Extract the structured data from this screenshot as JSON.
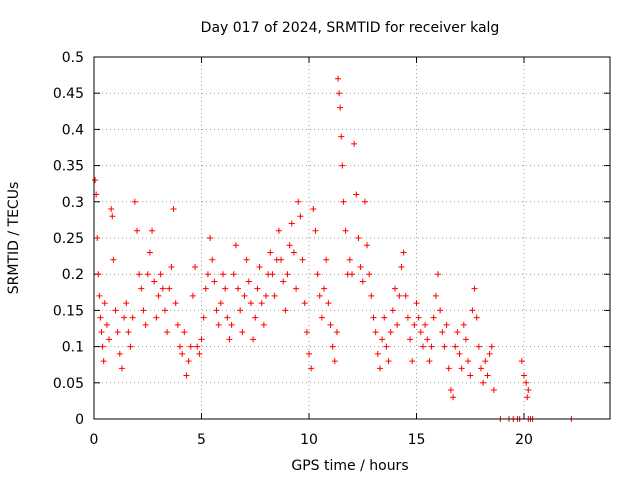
{
  "chart_data": {
    "type": "scatter",
    "title": "Day 017 of 2024, SRMTID for receiver kalg",
    "xlabel": "GPS time / hours",
    "ylabel": "SRMTID / TECUs",
    "xlim": [
      0,
      24
    ],
    "ylim": [
      0,
      0.5
    ],
    "grid": true,
    "marker": "+",
    "color": "#ff0000",
    "x_ticks": [
      "0",
      "5",
      "10",
      "15",
      "20"
    ],
    "y_ticks": [
      "0",
      "0.05",
      "0.1",
      "0.15",
      "0.2",
      "0.25",
      "0.3",
      "0.35",
      "0.4",
      "0.45",
      "0.5"
    ],
    "series": [
      {
        "points": [
          [
            0.05,
            0.33
          ],
          [
            0.1,
            0.31
          ],
          [
            0.15,
            0.25
          ],
          [
            0.2,
            0.2
          ],
          [
            0.25,
            0.17
          ],
          [
            0.3,
            0.14
          ],
          [
            0.35,
            0.12
          ],
          [
            0.4,
            0.1
          ],
          [
            0.45,
            0.08
          ],
          [
            0.5,
            0.16
          ],
          [
            0.6,
            0.13
          ],
          [
            0.7,
            0.11
          ],
          [
            0.8,
            0.29
          ],
          [
            0.85,
            0.28
          ],
          [
            0.9,
            0.22
          ],
          [
            1.0,
            0.15
          ],
          [
            1.1,
            0.12
          ],
          [
            1.2,
            0.09
          ],
          [
            1.3,
            0.07
          ],
          [
            1.4,
            0.14
          ],
          [
            1.5,
            0.16
          ],
          [
            1.6,
            0.12
          ],
          [
            1.7,
            0.1
          ],
          [
            1.8,
            0.14
          ],
          [
            1.9,
            0.3
          ],
          [
            2.0,
            0.26
          ],
          [
            2.1,
            0.2
          ],
          [
            2.2,
            0.18
          ],
          [
            2.3,
            0.15
          ],
          [
            2.4,
            0.13
          ],
          [
            2.5,
            0.2
          ],
          [
            2.6,
            0.23
          ],
          [
            2.7,
            0.26
          ],
          [
            2.8,
            0.19
          ],
          [
            2.9,
            0.14
          ],
          [
            3.0,
            0.17
          ],
          [
            3.1,
            0.2
          ],
          [
            3.2,
            0.18
          ],
          [
            3.3,
            0.15
          ],
          [
            3.4,
            0.12
          ],
          [
            3.5,
            0.18
          ],
          [
            3.6,
            0.21
          ],
          [
            3.7,
            0.29
          ],
          [
            3.8,
            0.16
          ],
          [
            3.9,
            0.13
          ],
          [
            4.0,
            0.1
          ],
          [
            4.1,
            0.09
          ],
          [
            4.2,
            0.12
          ],
          [
            4.3,
            0.06
          ],
          [
            4.4,
            0.08
          ],
          [
            4.5,
            0.1
          ],
          [
            4.6,
            0.17
          ],
          [
            4.7,
            0.21
          ],
          [
            4.8,
            0.1
          ],
          [
            4.9,
            0.09
          ],
          [
            5.0,
            0.11
          ],
          [
            5.1,
            0.14
          ],
          [
            5.2,
            0.18
          ],
          [
            5.3,
            0.2
          ],
          [
            5.4,
            0.25
          ],
          [
            5.5,
            0.22
          ],
          [
            5.6,
            0.19
          ],
          [
            5.7,
            0.15
          ],
          [
            5.8,
            0.13
          ],
          [
            5.9,
            0.16
          ],
          [
            6.0,
            0.2
          ],
          [
            6.1,
            0.18
          ],
          [
            6.2,
            0.14
          ],
          [
            6.3,
            0.11
          ],
          [
            6.4,
            0.13
          ],
          [
            6.5,
            0.2
          ],
          [
            6.6,
            0.24
          ],
          [
            6.7,
            0.18
          ],
          [
            6.8,
            0.15
          ],
          [
            6.9,
            0.12
          ],
          [
            7.0,
            0.17
          ],
          [
            7.1,
            0.22
          ],
          [
            7.2,
            0.19
          ],
          [
            7.3,
            0.16
          ],
          [
            7.4,
            0.11
          ],
          [
            7.5,
            0.14
          ],
          [
            7.6,
            0.18
          ],
          [
            7.7,
            0.21
          ],
          [
            7.8,
            0.16
          ],
          [
            7.9,
            0.13
          ],
          [
            8.0,
            0.17
          ],
          [
            8.1,
            0.2
          ],
          [
            8.2,
            0.23
          ],
          [
            8.3,
            0.2
          ],
          [
            8.4,
            0.17
          ],
          [
            8.5,
            0.22
          ],
          [
            8.6,
            0.26
          ],
          [
            8.7,
            0.22
          ],
          [
            8.8,
            0.19
          ],
          [
            8.9,
            0.15
          ],
          [
            9.0,
            0.2
          ],
          [
            9.1,
            0.24
          ],
          [
            9.2,
            0.27
          ],
          [
            9.3,
            0.23
          ],
          [
            9.4,
            0.18
          ],
          [
            9.5,
            0.3
          ],
          [
            9.6,
            0.28
          ],
          [
            9.7,
            0.22
          ],
          [
            9.8,
            0.16
          ],
          [
            9.9,
            0.12
          ],
          [
            10.0,
            0.09
          ],
          [
            10.1,
            0.07
          ],
          [
            10.2,
            0.29
          ],
          [
            10.3,
            0.26
          ],
          [
            10.4,
            0.2
          ],
          [
            10.5,
            0.17
          ],
          [
            10.6,
            0.14
          ],
          [
            10.7,
            0.18
          ],
          [
            10.8,
            0.22
          ],
          [
            10.9,
            0.16
          ],
          [
            11.0,
            0.13
          ],
          [
            11.1,
            0.1
          ],
          [
            11.2,
            0.08
          ],
          [
            11.3,
            0.12
          ],
          [
            11.35,
            0.47
          ],
          [
            11.4,
            0.45
          ],
          [
            11.45,
            0.43
          ],
          [
            11.5,
            0.39
          ],
          [
            11.55,
            0.35
          ],
          [
            11.6,
            0.3
          ],
          [
            11.7,
            0.26
          ],
          [
            11.8,
            0.2
          ],
          [
            11.9,
            0.22
          ],
          [
            12.0,
            0.2
          ],
          [
            12.1,
            0.38
          ],
          [
            12.2,
            0.31
          ],
          [
            12.3,
            0.25
          ],
          [
            12.4,
            0.21
          ],
          [
            12.5,
            0.19
          ],
          [
            12.6,
            0.3
          ],
          [
            12.7,
            0.24
          ],
          [
            12.8,
            0.2
          ],
          [
            12.9,
            0.17
          ],
          [
            13.0,
            0.14
          ],
          [
            13.1,
            0.12
          ],
          [
            13.2,
            0.09
          ],
          [
            13.3,
            0.07
          ],
          [
            13.4,
            0.11
          ],
          [
            13.5,
            0.14
          ],
          [
            13.6,
            0.1
          ],
          [
            13.7,
            0.08
          ],
          [
            13.8,
            0.12
          ],
          [
            13.9,
            0.15
          ],
          [
            14.0,
            0.18
          ],
          [
            14.1,
            0.13
          ],
          [
            14.2,
            0.17
          ],
          [
            14.3,
            0.21
          ],
          [
            14.4,
            0.23
          ],
          [
            14.5,
            0.17
          ],
          [
            14.6,
            0.14
          ],
          [
            14.7,
            0.11
          ],
          [
            14.8,
            0.08
          ],
          [
            14.9,
            0.13
          ],
          [
            15.0,
            0.16
          ],
          [
            15.1,
            0.14
          ],
          [
            15.2,
            0.12
          ],
          [
            15.3,
            0.1
          ],
          [
            15.4,
            0.13
          ],
          [
            15.5,
            0.11
          ],
          [
            15.6,
            0.08
          ],
          [
            15.7,
            0.1
          ],
          [
            15.8,
            0.14
          ],
          [
            15.9,
            0.17
          ],
          [
            16.0,
            0.2
          ],
          [
            16.1,
            0.15
          ],
          [
            16.2,
            0.12
          ],
          [
            16.3,
            0.1
          ],
          [
            16.4,
            0.13
          ],
          [
            16.5,
            0.07
          ],
          [
            16.6,
            0.04
          ],
          [
            16.7,
            0.03
          ],
          [
            16.8,
            0.1
          ],
          [
            16.9,
            0.12
          ],
          [
            17.0,
            0.09
          ],
          [
            17.1,
            0.07
          ],
          [
            17.2,
            0.13
          ],
          [
            17.3,
            0.11
          ],
          [
            17.4,
            0.08
          ],
          [
            17.5,
            0.06
          ],
          [
            17.6,
            0.15
          ],
          [
            17.7,
            0.18
          ],
          [
            17.8,
            0.14
          ],
          [
            17.9,
            0.1
          ],
          [
            18.0,
            0.07
          ],
          [
            18.1,
            0.05
          ],
          [
            18.2,
            0.08
          ],
          [
            18.3,
            0.06
          ],
          [
            18.4,
            0.09
          ],
          [
            18.5,
            0.1
          ],
          [
            18.6,
            0.04
          ],
          [
            19.9,
            0.08
          ],
          [
            20.0,
            0.06
          ],
          [
            20.1,
            0.05
          ],
          [
            20.15,
            0.03
          ],
          [
            20.2,
            0.04
          ],
          [
            18.9,
            0.0
          ],
          [
            19.3,
            0.0
          ],
          [
            19.5,
            0.0
          ],
          [
            19.7,
            0.0
          ],
          [
            19.8,
            0.0
          ],
          [
            20.2,
            0.0
          ],
          [
            20.3,
            0.0
          ],
          [
            20.4,
            0.0
          ],
          [
            22.2,
            0.0
          ]
        ]
      }
    ]
  }
}
